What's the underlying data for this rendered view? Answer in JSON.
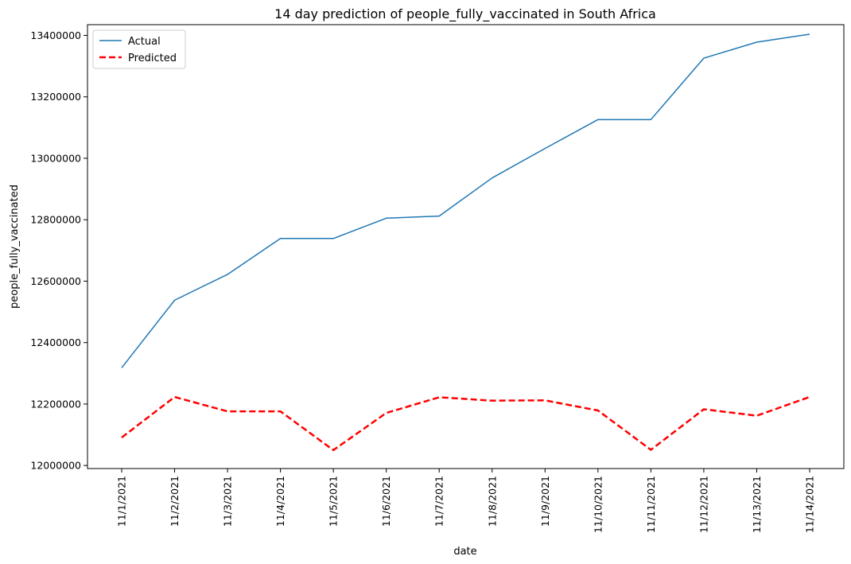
{
  "chart_data": {
    "type": "line",
    "title": "14 day prediction of people_fully_vaccinated in South Africa",
    "xlabel": "date",
    "ylabel": "people_fully_vaccinated",
    "categories": [
      "11/1/2021",
      "11/2/2021",
      "11/3/2021",
      "11/4/2021",
      "11/5/2021",
      "11/6/2021",
      "11/7/2021",
      "11/8/2021",
      "11/9/2021",
      "11/10/2021",
      "11/11/2021",
      "11/12/2021",
      "11/13/2021",
      "11/14/2021"
    ],
    "ylim": [
      11990000,
      13435000
    ],
    "yticks": [
      12000000,
      12200000,
      12400000,
      12600000,
      12800000,
      13000000,
      13200000,
      13400000
    ],
    "ytick_labels": [
      "12000000",
      "12200000",
      "12400000",
      "12600000",
      "12800000",
      "13000000",
      "13200000",
      "13400000"
    ],
    "grid": false,
    "legend": "top-left",
    "series": [
      {
        "name": "Actual",
        "color": "#1f77b4",
        "style": "solid",
        "values": [
          12318000,
          12538000,
          12622000,
          12739000,
          12739000,
          12805000,
          12812000,
          12936000,
          13032000,
          13126000,
          13126000,
          13326000,
          13378000,
          13404000
        ]
      },
      {
        "name": "Predicted",
        "color": "#ff0000",
        "style": "dashed",
        "values": [
          12091000,
          12223000,
          12176000,
          12176000,
          12050000,
          12171000,
          12222000,
          12211000,
          12212000,
          12179000,
          12051000,
          12183000,
          12162000,
          12223000
        ]
      }
    ]
  }
}
